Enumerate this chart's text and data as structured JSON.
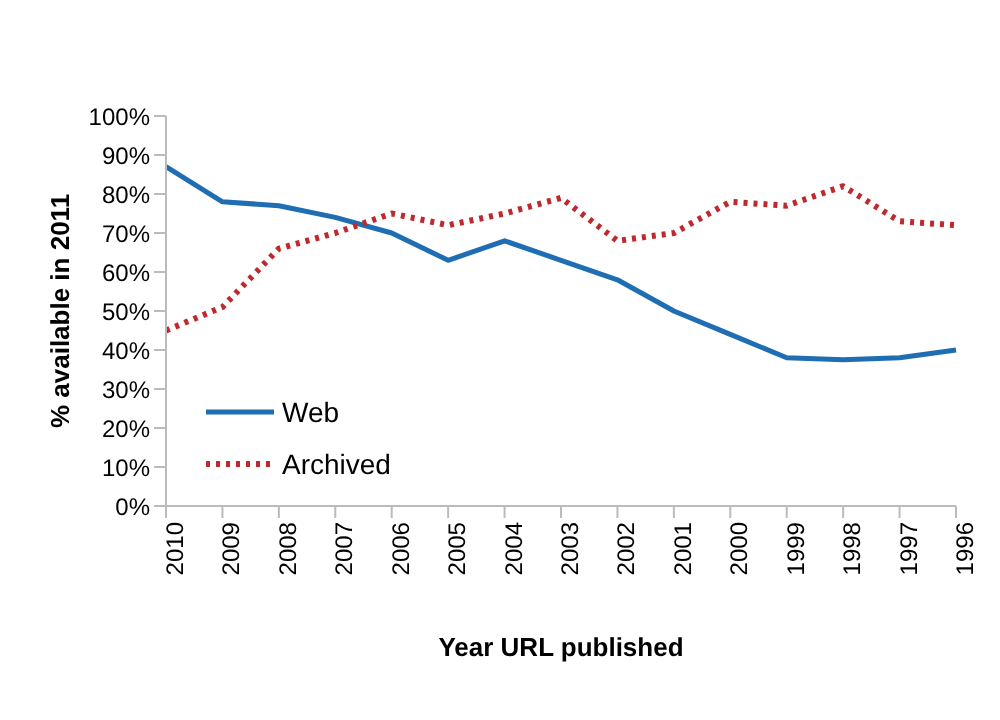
{
  "chart_data": {
    "type": "line",
    "xlabel": "Year URL published",
    "ylabel": "% available in 2011",
    "categories": [
      "2010",
      "2009",
      "2008",
      "2007",
      "2006",
      "2005",
      "2004",
      "2003",
      "2002",
      "2001",
      "2000",
      "1999",
      "1998",
      "1997",
      "1996"
    ],
    "series": [
      {
        "name": "Web",
        "color": "#1f6db3",
        "line_style": "solid",
        "values": [
          87,
          78,
          77,
          74,
          70,
          63,
          68,
          63,
          58,
          50,
          44,
          38,
          37.5,
          38,
          40
        ]
      },
      {
        "name": "Archived",
        "color": "#c0282d",
        "line_style": "dotted",
        "values": [
          45,
          51,
          66,
          70,
          75,
          72,
          75,
          79,
          68,
          70,
          78,
          77,
          82,
          73,
          72
        ]
      }
    ],
    "ylim": [
      0,
      100
    ],
    "yticks": [
      {
        "value": 0,
        "label": "0%"
      },
      {
        "value": 10,
        "label": "10%"
      },
      {
        "value": 20,
        "label": "20%"
      },
      {
        "value": 30,
        "label": "30%"
      },
      {
        "value": 40,
        "label": "40%"
      },
      {
        "value": 50,
        "label": "50%"
      },
      {
        "value": 60,
        "label": "60%"
      },
      {
        "value": 70,
        "label": "70%"
      },
      {
        "value": 80,
        "label": "80%"
      },
      {
        "value": 90,
        "label": "90%"
      },
      {
        "value": 100,
        "label": "100%"
      }
    ],
    "grid": false,
    "legend": "bottom left",
    "marker": "none"
  }
}
